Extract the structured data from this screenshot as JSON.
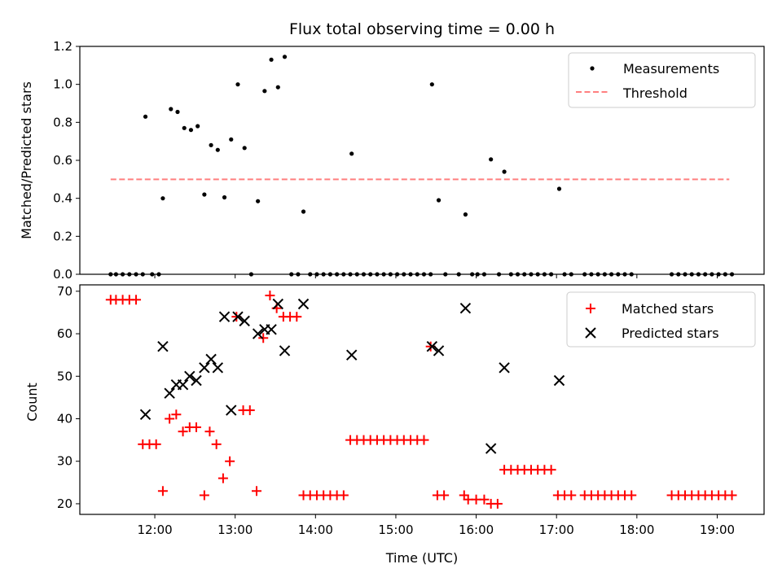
{
  "chart_data": [
    {
      "type": "scatter",
      "title": "Flux total observing time = 0.00 h",
      "ylabel": "Matched/Predicted stars",
      "ylim": [
        0,
        1.2
      ],
      "yticks": [
        "0.0",
        "0.2",
        "0.4",
        "0.6",
        "0.8",
        "1.0",
        "1.2"
      ],
      "legend": {
        "placement": "top-right",
        "entries": [
          "Measurements",
          "Threshold"
        ]
      },
      "threshold": {
        "name": "Threshold",
        "value": 0.5,
        "x_start": "11:27",
        "x_end": "19:09",
        "color": "#ff7f7f"
      },
      "series": [
        {
          "name": "Measurements",
          "marker": "dot",
          "color": "#000000",
          "points": [
            [
              "11:27",
              0
            ],
            [
              "11:31",
              0
            ],
            [
              "11:36",
              0
            ],
            [
              "11:41",
              0
            ],
            [
              "11:46",
              0
            ],
            [
              "11:51",
              0
            ],
            [
              "11:53",
              0.83
            ],
            [
              "11:58",
              0
            ],
            [
              "12:03",
              0
            ],
            [
              "12:06",
              0.4
            ],
            [
              "12:12",
              0.87
            ],
            [
              "12:17",
              0.855
            ],
            [
              "12:22",
              0.77
            ],
            [
              "12:27",
              0.76
            ],
            [
              "12:32",
              0.78
            ],
            [
              "12:37",
              0.42
            ],
            [
              "12:42",
              0.68
            ],
            [
              "12:47",
              0.655
            ],
            [
              "12:52",
              0.405
            ],
            [
              "12:57",
              0.71
            ],
            [
              "13:02",
              1.0
            ],
            [
              "13:07",
              0.665
            ],
            [
              "13:12",
              0
            ],
            [
              "13:17",
              0.385
            ],
            [
              "13:22",
              0.965
            ],
            [
              "13:27",
              1.13
            ],
            [
              "13:32",
              0.985
            ],
            [
              "13:37",
              1.145
            ],
            [
              "13:42",
              0
            ],
            [
              "13:47",
              0
            ],
            [
              "13:51",
              0.33
            ],
            [
              "13:56",
              0
            ],
            [
              "14:01",
              0
            ],
            [
              "14:06",
              0
            ],
            [
              "14:11",
              0
            ],
            [
              "14:16",
              0
            ],
            [
              "14:21",
              0
            ],
            [
              "14:26",
              0
            ],
            [
              "14:27",
              0.635
            ],
            [
              "14:31",
              0
            ],
            [
              "14:36",
              0
            ],
            [
              "14:41",
              0
            ],
            [
              "14:46",
              0
            ],
            [
              "14:51",
              0
            ],
            [
              "14:56",
              0
            ],
            [
              "15:01",
              0
            ],
            [
              "15:06",
              0
            ],
            [
              "15:11",
              0
            ],
            [
              "15:16",
              0
            ],
            [
              "15:21",
              0
            ],
            [
              "15:26",
              0
            ],
            [
              "15:27",
              1.0
            ],
            [
              "15:32",
              0.39
            ],
            [
              "15:37",
              0
            ],
            [
              "15:47",
              0
            ],
            [
              "15:52",
              0.315
            ],
            [
              "15:57",
              0
            ],
            [
              "16:01",
              0
            ],
            [
              "16:06",
              0
            ],
            [
              "16:11",
              0.605
            ],
            [
              "16:17",
              0
            ],
            [
              "16:21",
              0.54
            ],
            [
              "16:26",
              0
            ],
            [
              "16:31",
              0
            ],
            [
              "16:36",
              0
            ],
            [
              "16:41",
              0
            ],
            [
              "16:46",
              0
            ],
            [
              "16:51",
              0
            ],
            [
              "16:56",
              0
            ],
            [
              "17:02",
              0.45
            ],
            [
              "17:06",
              0
            ],
            [
              "17:11",
              0
            ],
            [
              "17:21",
              0
            ],
            [
              "17:26",
              0
            ],
            [
              "17:31",
              0
            ],
            [
              "17:36",
              0
            ],
            [
              "17:41",
              0
            ],
            [
              "17:46",
              0
            ],
            [
              "17:51",
              0
            ],
            [
              "17:56",
              0
            ],
            [
              "18:26",
              0
            ],
            [
              "18:31",
              0
            ],
            [
              "18:36",
              0
            ],
            [
              "18:41",
              0
            ],
            [
              "18:46",
              0
            ],
            [
              "18:51",
              0
            ],
            [
              "18:56",
              0
            ],
            [
              "19:01",
              0
            ],
            [
              "19:06",
              0
            ],
            [
              "19:11",
              0
            ]
          ]
        }
      ]
    },
    {
      "type": "scatter",
      "xlabel": "Time (UTC)",
      "ylabel": "Count",
      "ylim": [
        17.5,
        71.5
      ],
      "xlim": [
        "11:04",
        "19:35"
      ],
      "xticks": [
        "12:00",
        "13:00",
        "14:00",
        "15:00",
        "16:00",
        "17:00",
        "18:00",
        "19:00"
      ],
      "yticks": [
        "20",
        "30",
        "40",
        "50",
        "60",
        "70"
      ],
      "legend": {
        "placement": "top-right",
        "entries": [
          "Matched stars",
          "Predicted stars"
        ]
      },
      "series": [
        {
          "name": "Matched stars",
          "marker": "plus",
          "color": "#ff0000",
          "points": [
            [
              "11:27",
              68
            ],
            [
              "11:31",
              68
            ],
            [
              "11:36",
              68
            ],
            [
              "11:41",
              68
            ],
            [
              "11:46",
              68
            ],
            [
              "11:51",
              34
            ],
            [
              "11:56",
              34
            ],
            [
              "12:01",
              34
            ],
            [
              "12:06",
              23
            ],
            [
              "12:11",
              40
            ],
            [
              "12:16",
              41
            ],
            [
              "12:21",
              37
            ],
            [
              "12:26",
              38
            ],
            [
              "12:31",
              38
            ],
            [
              "12:37",
              22
            ],
            [
              "12:41",
              37
            ],
            [
              "12:46",
              34
            ],
            [
              "12:51",
              26
            ],
            [
              "12:56",
              30
            ],
            [
              "13:01",
              64
            ],
            [
              "13:06",
              42
            ],
            [
              "13:11",
              42
            ],
            [
              "13:16",
              23
            ],
            [
              "13:21",
              59
            ],
            [
              "13:26",
              69
            ],
            [
              "13:31",
              66
            ],
            [
              "13:36",
              64
            ],
            [
              "13:41",
              64
            ],
            [
              "13:46",
              64
            ],
            [
              "13:51",
              22
            ],
            [
              "13:56",
              22
            ],
            [
              "14:01",
              22
            ],
            [
              "14:06",
              22
            ],
            [
              "14:11",
              22
            ],
            [
              "14:16",
              22
            ],
            [
              "14:21",
              22
            ],
            [
              "14:26",
              35
            ],
            [
              "14:31",
              35
            ],
            [
              "14:36",
              35
            ],
            [
              "14:41",
              35
            ],
            [
              "14:46",
              35
            ],
            [
              "14:51",
              35
            ],
            [
              "14:56",
              35
            ],
            [
              "15:01",
              35
            ],
            [
              "15:06",
              35
            ],
            [
              "15:11",
              35
            ],
            [
              "15:16",
              35
            ],
            [
              "15:21",
              35
            ],
            [
              "15:26",
              57
            ],
            [
              "15:31",
              22
            ],
            [
              "15:36",
              22
            ],
            [
              "15:51",
              22
            ],
            [
              "15:54",
              21
            ],
            [
              "16:00",
              21
            ],
            [
              "16:06",
              21
            ],
            [
              "16:11",
              20
            ],
            [
              "16:16",
              20
            ],
            [
              "16:21",
              28
            ],
            [
              "16:26",
              28
            ],
            [
              "16:31",
              28
            ],
            [
              "16:36",
              28
            ],
            [
              "16:41",
              28
            ],
            [
              "16:46",
              28
            ],
            [
              "16:51",
              28
            ],
            [
              "16:56",
              28
            ],
            [
              "17:01",
              22
            ],
            [
              "17:06",
              22
            ],
            [
              "17:11",
              22
            ],
            [
              "17:21",
              22
            ],
            [
              "17:26",
              22
            ],
            [
              "17:31",
              22
            ],
            [
              "17:36",
              22
            ],
            [
              "17:41",
              22
            ],
            [
              "17:46",
              22
            ],
            [
              "17:51",
              22
            ],
            [
              "17:56",
              22
            ],
            [
              "18:26",
              22
            ],
            [
              "18:31",
              22
            ],
            [
              "18:36",
              22
            ],
            [
              "18:41",
              22
            ],
            [
              "18:46",
              22
            ],
            [
              "18:51",
              22
            ],
            [
              "18:56",
              22
            ],
            [
              "19:01",
              22
            ],
            [
              "19:06",
              22
            ],
            [
              "19:11",
              22
            ]
          ]
        },
        {
          "name": "Predicted stars",
          "marker": "cross",
          "color": "#000000",
          "points": [
            [
              "11:53",
              41
            ],
            [
              "12:06",
              57
            ],
            [
              "12:11",
              46
            ],
            [
              "12:16",
              48
            ],
            [
              "12:21",
              48
            ],
            [
              "12:26",
              50
            ],
            [
              "12:31",
              49
            ],
            [
              "12:37",
              52
            ],
            [
              "12:42",
              54
            ],
            [
              "12:47",
              52
            ],
            [
              "12:52",
              64
            ],
            [
              "12:57",
              42
            ],
            [
              "13:02",
              64
            ],
            [
              "13:07",
              63
            ],
            [
              "13:17",
              60
            ],
            [
              "13:22",
              61
            ],
            [
              "13:27",
              61
            ],
            [
              "13:32",
              67
            ],
            [
              "13:37",
              56
            ],
            [
              "13:51",
              67
            ],
            [
              "14:27",
              55
            ],
            [
              "15:27",
              57
            ],
            [
              "15:32",
              56
            ],
            [
              "15:52",
              66
            ],
            [
              "16:11",
              33
            ],
            [
              "16:21",
              52
            ],
            [
              "17:02",
              49
            ]
          ]
        }
      ]
    }
  ]
}
